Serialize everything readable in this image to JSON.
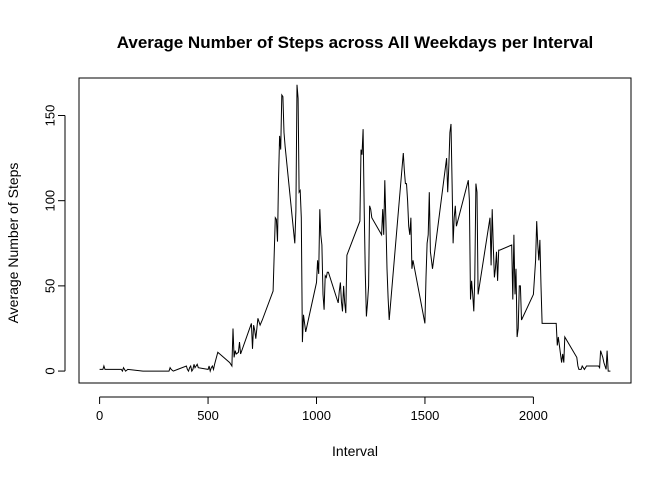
{
  "chart_data": {
    "type": "line",
    "title": "Average Number of Steps across All Weekdays per Interval",
    "xlabel": "Interval",
    "ylabel": "Average Number of Steps",
    "xlim": [
      -95,
      2450
    ],
    "ylim": [
      -7,
      172
    ],
    "xticks": [
      0,
      500,
      1000,
      1500,
      2000
    ],
    "yticks": [
      0,
      50,
      100,
      150
    ],
    "grid": false,
    "legend": "none",
    "series": [
      {
        "x": [
          0,
          15,
          20,
          25,
          30,
          60,
          100,
          105,
          110,
          120,
          130,
          200,
          250,
          300,
          320,
          325,
          330,
          340,
          360,
          400,
          405,
          410,
          415,
          420,
          425,
          430,
          435,
          440,
          445,
          450,
          455,
          500,
          505,
          510,
          515,
          520,
          525,
          530,
          545,
          600,
          610,
          615,
          620,
          625,
          630,
          640,
          645,
          650,
          700,
          705,
          710,
          715,
          720,
          730,
          740,
          750,
          800,
          810,
          815,
          820,
          825,
          830,
          835,
          840,
          845,
          850,
          855,
          900,
          905,
          910,
          915,
          920,
          925,
          930,
          935,
          940,
          950,
          1000,
          1005,
          1010,
          1015,
          1020,
          1025,
          1030,
          1035,
          1040,
          1045,
          1050,
          1055,
          1100,
          1105,
          1110,
          1115,
          1120,
          1125,
          1130,
          1135,
          1140,
          1200,
          1205,
          1210,
          1215,
          1220,
          1225,
          1230,
          1235,
          1240,
          1245,
          1250,
          1255,
          1300,
          1305,
          1310,
          1315,
          1320,
          1325,
          1330,
          1335,
          1400,
          1405,
          1410,
          1415,
          1420,
          1425,
          1430,
          1435,
          1440,
          1445,
          1500,
          1505,
          1510,
          1515,
          1520,
          1525,
          1530,
          1535,
          1600,
          1605,
          1610,
          1615,
          1620,
          1625,
          1630,
          1635,
          1640,
          1645,
          1700,
          1705,
          1710,
          1715,
          1720,
          1725,
          1730,
          1735,
          1740,
          1745,
          1800,
          1805,
          1810,
          1815,
          1820,
          1825,
          1830,
          1835,
          1840,
          1845,
          1900,
          1905,
          1910,
          1915,
          1920,
          1925,
          1930,
          1935,
          1940,
          1945,
          2000,
          2005,
          2010,
          2015,
          2020,
          2025,
          2030,
          2035,
          2040,
          2045,
          2100,
          2105,
          2110,
          2115,
          2120,
          2125,
          2130,
          2135,
          2140,
          2145,
          2200,
          2205,
          2210,
          2215,
          2220,
          2225,
          2230,
          2235,
          2240,
          2245,
          2300,
          2305,
          2310,
          2315,
          2320,
          2325,
          2330,
          2335,
          2340,
          2345,
          2355
        ],
        "y": [
          1,
          1,
          3,
          1,
          1,
          1,
          1,
          0,
          2,
          0,
          1,
          0,
          0,
          0,
          0,
          2,
          1,
          0,
          1,
          3,
          1,
          0,
          2,
          3,
          0,
          1,
          4,
          2,
          3,
          4,
          2,
          1,
          3,
          0,
          2,
          3,
          1,
          4,
          11,
          5,
          3,
          25,
          8,
          12,
          10,
          11,
          17,
          10,
          28,
          13,
          27,
          24,
          19,
          31,
          27,
          30,
          47,
          90,
          89,
          76,
          112,
          138,
          130,
          162,
          161,
          140,
          132,
          75,
          94,
          168,
          160,
          105,
          106,
          90,
          17,
          33,
          23,
          52,
          65,
          57,
          95,
          80,
          74,
          45,
          36,
          56,
          55,
          58,
          58,
          40,
          47,
          52,
          41,
          35,
          50,
          40,
          34,
          68,
          88,
          130,
          127,
          142,
          95,
          57,
          32,
          40,
          50,
          97,
          95,
          90,
          80,
          95,
          80,
          112,
          88,
          60,
          43,
          30,
          128,
          118,
          110,
          110,
          100,
          85,
          80,
          90,
          60,
          65,
          28,
          55,
          75,
          80,
          105,
          70,
          65,
          60,
          125,
          105,
          120,
          140,
          145,
          110,
          75,
          90,
          97,
          85,
          112,
          100,
          42,
          53,
          45,
          35,
          55,
          110,
          105,
          45,
          90,
          62,
          95,
          73,
          55,
          60,
          70,
          53,
          71,
          71,
          74,
          42,
          80,
          45,
          60,
          20,
          25,
          50,
          50,
          30,
          45,
          55,
          65,
          88,
          75,
          65,
          77,
          50,
          28,
          28,
          28,
          28,
          15,
          20,
          15,
          10,
          5,
          10,
          5,
          20,
          8,
          3,
          1,
          1,
          1,
          3,
          2,
          1,
          2,
          3,
          3,
          2,
          12,
          10,
          8,
          5,
          3,
          1,
          12,
          0,
          0
        ]
      }
    ]
  }
}
